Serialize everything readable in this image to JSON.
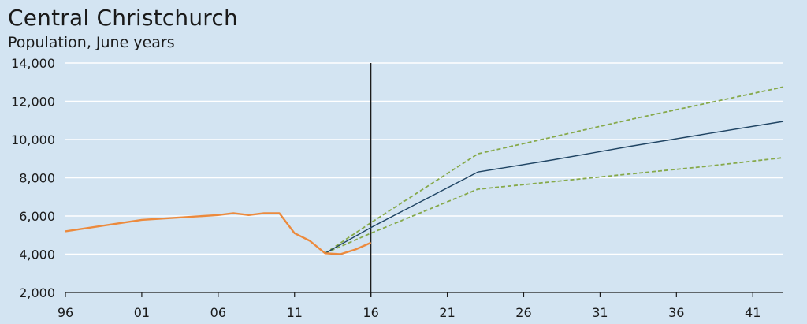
{
  "chart_data": {
    "type": "line",
    "title": "Central Christchurch",
    "subtitle": "Population, June years",
    "xlabel": "",
    "ylabel": "",
    "ylim": [
      2000,
      14000
    ],
    "xlim": [
      1996,
      2043
    ],
    "x_ticks": [
      1996,
      2001,
      2006,
      2011,
      2016,
      2021,
      2026,
      2031,
      2036,
      2041
    ],
    "x_tick_labels": [
      "96",
      "01",
      "06",
      "11",
      "16",
      "21",
      "26",
      "31",
      "36",
      "41"
    ],
    "y_ticks": [
      2000,
      4000,
      6000,
      8000,
      10000,
      12000,
      14000
    ],
    "y_tick_labels": [
      "2,000",
      "4,000",
      "6,000",
      "8,000",
      "10,000",
      "12,000",
      "14,000"
    ],
    "grid": "horizontal",
    "reference_line_x": 2016,
    "colors": {
      "background": "#d3e4f2",
      "gridline": "#ffffff",
      "estimate": "#ec8a3d",
      "projection_medium": "#1f4463",
      "projection_bounds": "#86a94a",
      "axis": "#1a1a1a"
    },
    "series": [
      {
        "style": "estimate",
        "x": [
          1996,
          2001,
          2006,
          2007,
          2008,
          2009,
          2010,
          2011,
          2012,
          2013,
          2014,
          2015,
          2016
        ],
        "y": [
          5200,
          5800,
          6050,
          6150,
          6050,
          6150,
          6150,
          5100,
          4700,
          4050,
          4000,
          4250,
          4600
        ]
      },
      {
        "style": "projection_medium",
        "x": [
          2013,
          2016,
          2023,
          2028,
          2033,
          2038,
          2043
        ],
        "y": [
          4050,
          5400,
          8300,
          8950,
          9650,
          10300,
          10950
        ]
      },
      {
        "style": "projection_high",
        "x": [
          2013,
          2016,
          2023,
          2028,
          2033,
          2038,
          2043
        ],
        "y": [
          4050,
          5650,
          9250,
          10150,
          11050,
          11900,
          12750
        ]
      },
      {
        "style": "projection_low",
        "x": [
          2013,
          2016,
          2023,
          2028,
          2033,
          2038,
          2043
        ],
        "y": [
          4050,
          5100,
          7400,
          7800,
          8200,
          8600,
          9050
        ]
      }
    ]
  }
}
